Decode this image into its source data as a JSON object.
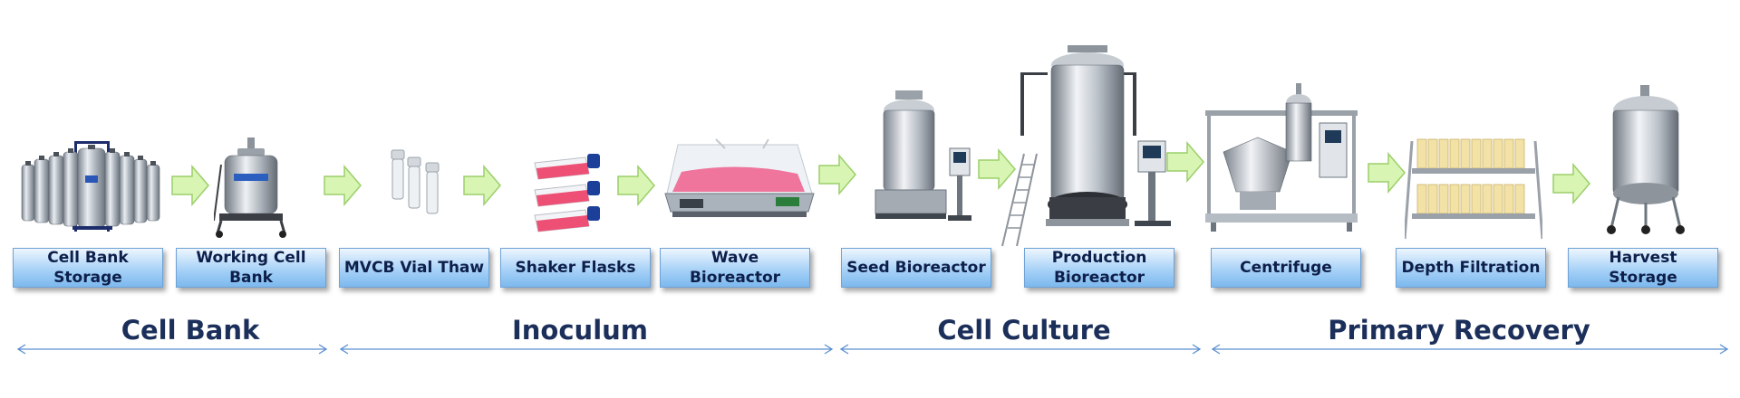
{
  "steps": [
    "Cell Bank Storage",
    "Working Cell Bank",
    "MVCB Vial Thaw",
    "Shaker Flasks",
    "Wave Bioreactor",
    "Seed Bioreactor",
    "Production Bioreactor",
    "Centrifuge",
    "Depth Filtration",
    "Harvest Storage"
  ],
  "phases": [
    "Cell Bank",
    "Inoculum",
    "Cell Culture",
    "Primary Recovery"
  ],
  "colors": {
    "arrow_fill": "#d8f5b4",
    "arrow_stroke": "#9ccf6a",
    "box_border": "#6fa2d6",
    "phase_text": "#1b2f5a",
    "bracket_line": "#5a8fd0",
    "flask_medium": "#ee4f74",
    "cap_blue": "#1c3f9a"
  }
}
